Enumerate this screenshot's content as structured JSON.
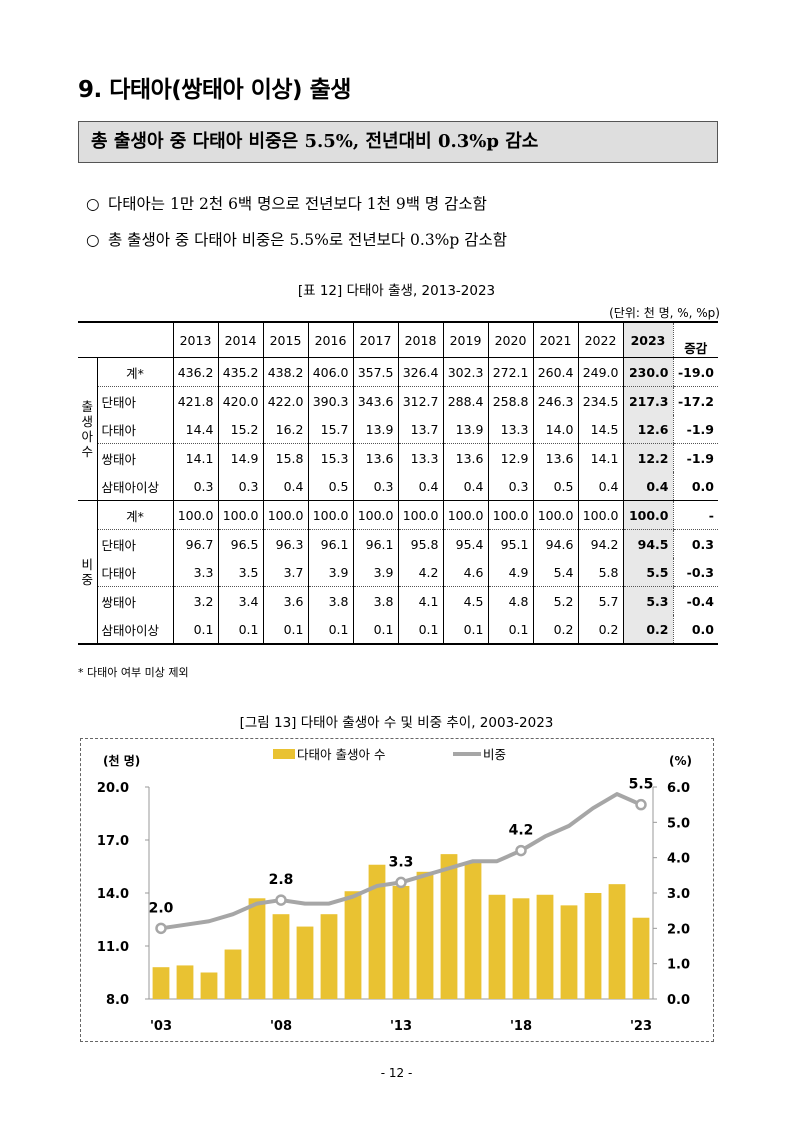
{
  "section_title": "9. 다태아(쌍태아 이상) 출생",
  "headline": "총 출생아 중 다태아 비중은 5.5%, 전년대비 0.3%p 감소",
  "bullets": [
    {
      "mark": "○",
      "text": "다태아는 1만 2천 6백 명으로 전년보다 1천 9백 명 감소함"
    },
    {
      "mark": "○",
      "text": "총 출생아 중 다태아 비중은 5.5%로 전년보다 0.3%p 감소함"
    }
  ],
  "table_caption": "[표 12] 다태아 출생, 2013-2023",
  "table_unit": "(단위: 천 명, %, %p)",
  "table": {
    "years": [
      "2013",
      "2014",
      "2015",
      "2016",
      "2017",
      "2018",
      "2019",
      "2020",
      "2021",
      "2022",
      "2023"
    ],
    "change_header": "증감",
    "groups": [
      {
        "label": "출생아수",
        "rows": [
          {
            "label": "계*",
            "values": [
              "436.2",
              "435.2",
              "438.2",
              "406.0",
              "357.5",
              "326.4",
              "302.3",
              "272.1",
              "260.4",
              "249.0",
              "230.0"
            ],
            "change": "-19.0"
          },
          {
            "label": "단태아",
            "values": [
              "421.8",
              "420.0",
              "422.0",
              "390.3",
              "343.6",
              "312.7",
              "288.4",
              "258.8",
              "246.3",
              "234.5",
              "217.3"
            ],
            "change": "-17.2"
          },
          {
            "label": "다태아",
            "values": [
              "14.4",
              "15.2",
              "16.2",
              "15.7",
              "13.9",
              "13.7",
              "13.9",
              "13.3",
              "14.0",
              "14.5",
              "12.6"
            ],
            "change": "-1.9"
          },
          {
            "label": "쌍태아",
            "values": [
              "14.1",
              "14.9",
              "15.8",
              "15.3",
              "13.6",
              "13.3",
              "13.6",
              "12.9",
              "13.6",
              "14.1",
              "12.2"
            ],
            "change": "-1.9"
          },
          {
            "label": "삼태아이상",
            "values": [
              "0.3",
              "0.3",
              "0.4",
              "0.5",
              "0.3",
              "0.4",
              "0.4",
              "0.3",
              "0.5",
              "0.4",
              "0.4"
            ],
            "change": "0.0"
          }
        ]
      },
      {
        "label": "비중",
        "rows": [
          {
            "label": "계*",
            "values": [
              "100.0",
              "100.0",
              "100.0",
              "100.0",
              "100.0",
              "100.0",
              "100.0",
              "100.0",
              "100.0",
              "100.0",
              "100.0"
            ],
            "change": "-"
          },
          {
            "label": "단태아",
            "values": [
              "96.7",
              "96.5",
              "96.3",
              "96.1",
              "96.1",
              "95.8",
              "95.4",
              "95.1",
              "94.6",
              "94.2",
              "94.5"
            ],
            "change": "0.3"
          },
          {
            "label": "다태아",
            "values": [
              "3.3",
              "3.5",
              "3.7",
              "3.9",
              "3.9",
              "4.2",
              "4.6",
              "4.9",
              "5.4",
              "5.8",
              "5.5"
            ],
            "change": "-0.3"
          },
          {
            "label": "쌍태아",
            "values": [
              "3.2",
              "3.4",
              "3.6",
              "3.8",
              "3.8",
              "4.1",
              "4.5",
              "4.8",
              "5.2",
              "5.7",
              "5.3"
            ],
            "change": "-0.4"
          },
          {
            "label": "삼태아이상",
            "values": [
              "0.1",
              "0.1",
              "0.1",
              "0.1",
              "0.1",
              "0.1",
              "0.1",
              "0.1",
              "0.2",
              "0.2",
              "0.2"
            ],
            "change": "0.0"
          }
        ]
      }
    ]
  },
  "table_note": "* 다태아 여부 미상 제외",
  "chart_caption": "[그림 13] 다태아 출생아 수 및 비중 추이, 2003-2023",
  "page_number": "- 12 -",
  "colors": {
    "bar": "#e9c232",
    "line": "#a6a6a6"
  },
  "chart_data": {
    "type": "bar+line",
    "x": [
      "2003",
      "2004",
      "2005",
      "2006",
      "2007",
      "2008",
      "2009",
      "2010",
      "2011",
      "2012",
      "2013",
      "2014",
      "2015",
      "2016",
      "2017",
      "2018",
      "2019",
      "2020",
      "2021",
      "2022",
      "2023"
    ],
    "x_tick_labels": [
      {
        "x": "2003",
        "label": "'03"
      },
      {
        "x": "2008",
        "label": "'08"
      },
      {
        "x": "2013",
        "label": "'13"
      },
      {
        "x": "2018",
        "label": "'18"
      },
      {
        "x": "2023",
        "label": "'23"
      }
    ],
    "series": [
      {
        "name": "다태아 출생아 수",
        "type": "bar",
        "axis": "left",
        "values": [
          9.8,
          9.9,
          9.5,
          10.8,
          13.7,
          12.8,
          12.1,
          12.8,
          14.1,
          15.6,
          14.4,
          15.2,
          16.2,
          15.7,
          13.9,
          13.7,
          13.9,
          13.3,
          14.0,
          14.5,
          12.6
        ]
      },
      {
        "name": "비중",
        "type": "line",
        "axis": "right",
        "values": [
          2.0,
          2.1,
          2.2,
          2.4,
          2.7,
          2.8,
          2.7,
          2.7,
          2.9,
          3.2,
          3.3,
          3.5,
          3.7,
          3.9,
          3.9,
          4.2,
          4.6,
          4.9,
          5.4,
          5.8,
          5.5
        ]
      }
    ],
    "annotations": [
      {
        "x": "2003",
        "label": "2.0"
      },
      {
        "x": "2008",
        "label": "2.8"
      },
      {
        "x": "2013",
        "label": "3.3"
      },
      {
        "x": "2018",
        "label": "4.2"
      },
      {
        "x": "2023",
        "label": "5.5"
      }
    ],
    "left_axis": {
      "unit_label": "(천 명)",
      "ticks": [
        "20.0",
        "17.0",
        "14.0",
        "11.0",
        "8.0"
      ],
      "range": [
        8.0,
        20.0
      ]
    },
    "right_axis": {
      "unit_label": "(%)",
      "ticks": [
        "6.0",
        "5.0",
        "4.0",
        "3.0",
        "2.0",
        "1.0",
        "0.0"
      ],
      "range": [
        0.0,
        6.0
      ]
    },
    "legend_position": "top-center",
    "grid": false
  }
}
